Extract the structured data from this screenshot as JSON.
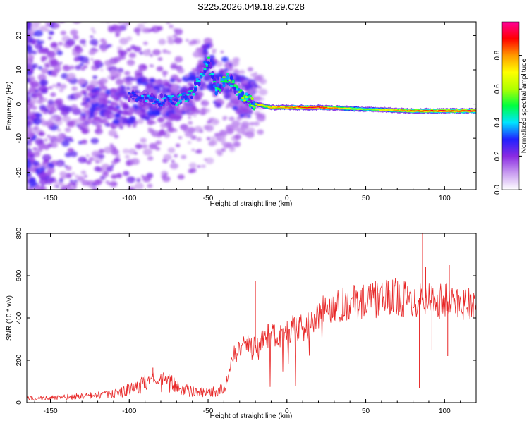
{
  "title": "S225.2026.049.18.29.C28",
  "chart_data": [
    {
      "type": "heatmap",
      "name": "spectrogram",
      "xlabel": "Height of straight line (km)",
      "ylabel": "Frequency (Hz)",
      "xlim": [
        -165,
        120
      ],
      "ylim": [
        -25,
        24
      ],
      "xticks": [
        -150,
        -100,
        -50,
        0,
        50,
        100
      ],
      "yticks": [
        -20,
        -10,
        0,
        10,
        20
      ],
      "colorbar": {
        "label": "Normalized spectral amplitude",
        "range": [
          0,
          1
        ],
        "ticks": [
          0.0,
          0.2,
          0.4,
          0.6,
          0.8
        ],
        "tick_labels": [
          "0.0",
          "0.2",
          "0.4",
          "0.6",
          "0.8"
        ],
        "colors": [
          "#ffffff",
          "#c89bf0",
          "#8a2be2",
          "#2020ff",
          "#00e5ff",
          "#00ff40",
          "#b0ff00",
          "#ffff00",
          "#ff9900",
          "#ff0000",
          "#ff0099"
        ]
      },
      "ridge": {
        "x": [
          -95,
          -80,
          -70,
          -60,
          -50,
          -45,
          -38,
          -30,
          -25,
          -20,
          -10,
          0,
          20,
          50,
          80,
          120
        ],
        "freq": [
          2.0,
          1.0,
          1.0,
          3.0,
          13.0,
          4.0,
          8.0,
          3.0,
          1.5,
          0.0,
          -1.0,
          -1.0,
          -1.0,
          -1.5,
          -2.0,
          -2.0
        ],
        "amplitude": [
          0.35,
          0.4,
          0.4,
          0.45,
          0.45,
          0.5,
          0.55,
          0.6,
          0.65,
          0.75,
          0.8,
          0.85,
          0.95,
          0.6,
          0.9,
          0.95
        ]
      }
    },
    {
      "type": "line",
      "name": "snr",
      "xlabel": "Height of straight line (km)",
      "ylabel": "SNR (10 * v/v)",
      "xlim": [
        -165,
        120
      ],
      "ylim": [
        0,
        800
      ],
      "xticks": [
        -150,
        -100,
        -50,
        0,
        50,
        100
      ],
      "yticks": [
        0,
        200,
        400,
        600,
        800
      ],
      "color": "#e82828",
      "series": [
        {
          "name": "SNR",
          "x": [
            -165,
            -150,
            -130,
            -110,
            -100,
            -90,
            -85,
            -80,
            -70,
            -60,
            -50,
            -40,
            -35,
            -30,
            -25,
            -20,
            -15,
            -10,
            -5,
            0,
            5,
            10,
            15,
            20,
            25,
            30,
            40,
            50,
            60,
            70,
            80,
            85,
            90,
            100,
            110,
            120
          ],
          "values": [
            20,
            22,
            30,
            40,
            60,
            90,
            120,
            100,
            80,
            50,
            45,
            60,
            200,
            250,
            280,
            260,
            300,
            330,
            310,
            330,
            360,
            340,
            380,
            400,
            450,
            460,
            470,
            480,
            490,
            500,
            480,
            500,
            490,
            480,
            470,
            480
          ],
          "spikes": [
            {
              "x": -85,
              "value": 165
            },
            {
              "x": -20,
              "value": 575
            },
            {
              "x": 84,
              "value": 70
            },
            {
              "x": 86,
              "value": 800
            },
            {
              "x": 88,
              "value": 640
            },
            {
              "x": 92,
              "value": 250
            },
            {
              "x": 101,
              "value": 580
            },
            {
              "x": 102,
              "value": 220
            },
            {
              "x": 103,
              "value": 650
            }
          ]
        }
      ]
    }
  ]
}
